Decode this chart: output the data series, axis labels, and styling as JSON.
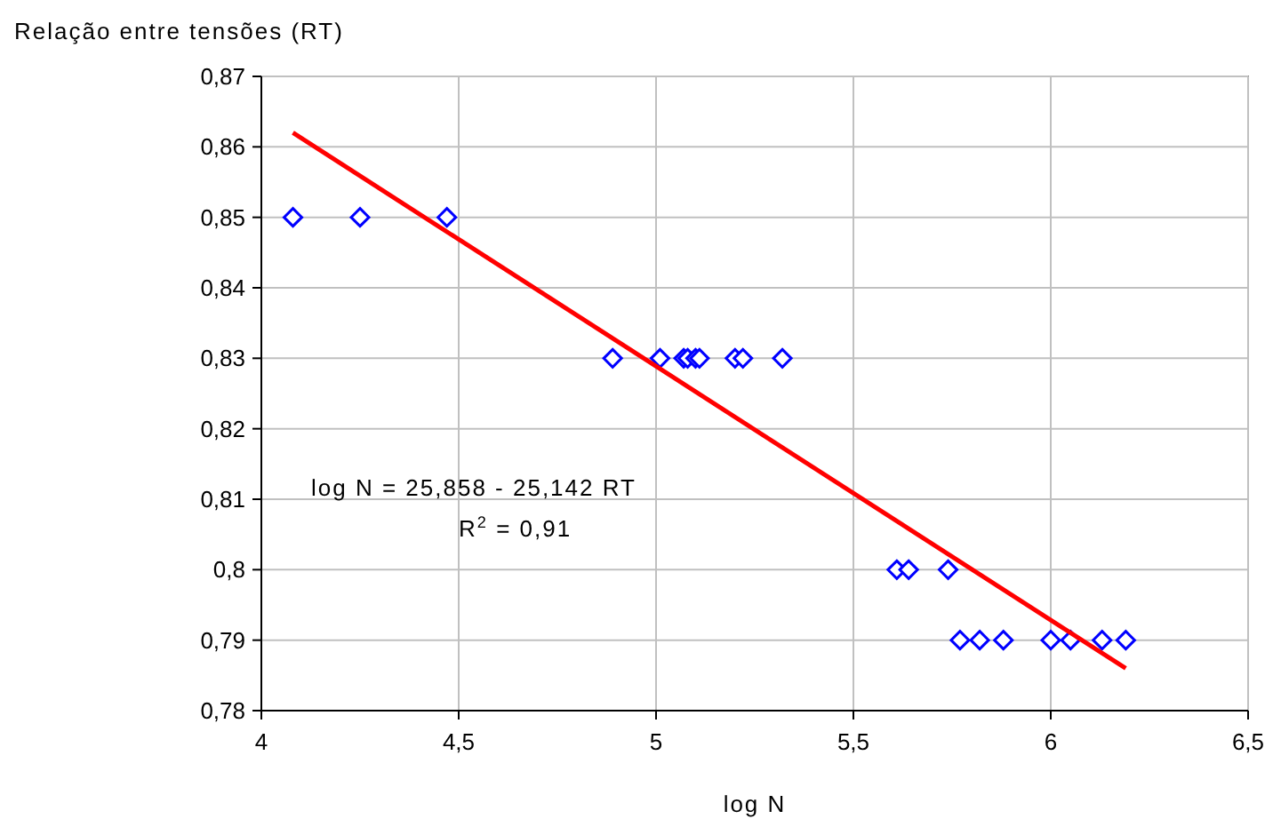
{
  "chart_data": {
    "type": "scatter",
    "ylabel": "Relação entre tensões (RT)",
    "xlabel": "log N",
    "xlim": [
      4,
      6.5
    ],
    "xticks": [
      4,
      {
        "value": 4.5,
        "label": "4,5"
      },
      5,
      {
        "value": 5.5,
        "label": "5,5"
      },
      6,
      {
        "value": 6.5,
        "label": "6,5"
      }
    ],
    "ylim": [
      0.78,
      0.87
    ],
    "yticks": [
      {
        "value": 0.78,
        "label": "0,78"
      },
      {
        "value": 0.79,
        "label": "0,79"
      },
      {
        "value": 0.8,
        "label": "0,8"
      },
      {
        "value": 0.81,
        "label": "0,81"
      },
      {
        "value": 0.82,
        "label": "0,82"
      },
      {
        "value": 0.83,
        "label": "0,83"
      },
      {
        "value": 0.84,
        "label": "0,84"
      },
      {
        "value": 0.85,
        "label": "0,85"
      },
      {
        "value": 0.86,
        "label": "0,86"
      },
      {
        "value": 0.87,
        "label": "0,87"
      }
    ],
    "grid": true,
    "series": [
      {
        "marker": "diamond",
        "color": "#0000ff",
        "x": [
          4.08,
          4.25,
          4.47,
          4.89,
          5.01,
          5.07,
          5.08,
          5.1,
          5.11,
          5.2,
          5.22,
          5.32,
          5.61,
          5.64,
          5.74,
          5.77,
          5.82,
          5.88,
          6.0,
          6.05,
          6.13,
          6.19
        ],
        "values": [
          0.85,
          0.85,
          0.85,
          0.83,
          0.83,
          0.83,
          0.83,
          0.83,
          0.83,
          0.83,
          0.83,
          0.83,
          0.8,
          0.8,
          0.8,
          0.79,
          0.79,
          0.79,
          0.79,
          0.79,
          0.79,
          0.79
        ]
      },
      {
        "type": "line",
        "marker": "none",
        "color": "#ff0000",
        "x": [
          4.08,
          6.19
        ],
        "values": [
          0.862,
          0.786
        ]
      }
    ],
    "annotations": [
      "log N = 25,858 - 25,142 RT",
      "R$^{2}$ = 0,91"
    ]
  }
}
